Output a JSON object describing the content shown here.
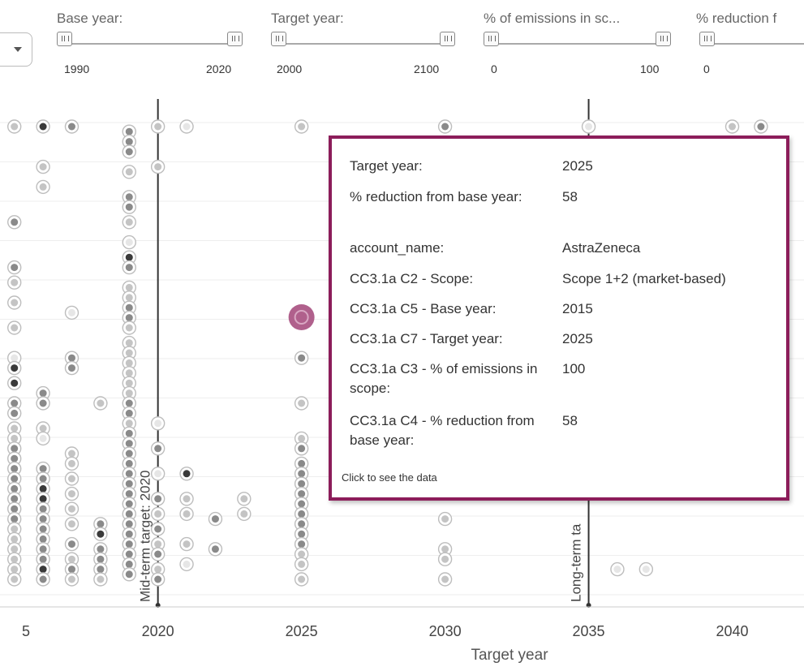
{
  "filters": [
    {
      "label": "Base year:",
      "min": "1990",
      "max": "2020"
    },
    {
      "label": "Target year:",
      "min": "2000",
      "max": "2100"
    },
    {
      "label": "% of emissions in sc...",
      "min": "0",
      "max": "100"
    },
    {
      "label": "% reduction f",
      "min": "0",
      "max": ""
    }
  ],
  "reference_lines": [
    {
      "label": "Mid-term target: 2020",
      "x": 2020
    },
    {
      "label": "Long-term ta",
      "x": 2035
    }
  ],
  "tooltip": {
    "rows": [
      {
        "key": "Target year:",
        "value": "2025"
      },
      {
        "key": "% reduction from base year:",
        "value": "58"
      },
      {
        "key": "account_name:",
        "value": "AstraZeneca"
      },
      {
        "key": "CC3.1a C2 - Scope:",
        "value": "Scope 1+2 (market-based)"
      },
      {
        "key": "CC3.1a C5 - Base year:",
        "value": "2015"
      },
      {
        "key": "CC3.1a C7 - Target year:",
        "value": "2025"
      },
      {
        "key": "CC3.1a C3 - % of emissions in scope:",
        "value": "100"
      },
      {
        "key": "CC3.1a C4 - % reduction from base year:",
        "value": "58"
      }
    ],
    "link": "Click to see the data"
  },
  "colors": {
    "accent": "#8c1d5a",
    "highlight": "#b0608c",
    "point_dark": "#333333",
    "point_light": "#cccccc"
  },
  "chart_data": {
    "type": "scatter",
    "xlabel": "Target year",
    "ylabel": "",
    "xticks": [
      "5",
      "2020",
      "2025",
      "2030",
      "2035",
      "2040"
    ],
    "xlim": [
      2014.5,
      2042.5
    ],
    "ylim": [
      0,
      100
    ],
    "highlighted_point": {
      "x": 2025,
      "y": 58,
      "label": "AstraZeneca"
    },
    "points": [
      {
        "x": 2015,
        "y": 95,
        "s": 1
      },
      {
        "x": 2015,
        "y": 76,
        "s": 2
      },
      {
        "x": 2015,
        "y": 67,
        "s": 2
      },
      {
        "x": 2015,
        "y": 64,
        "s": 1
      },
      {
        "x": 2015,
        "y": 60,
        "s": 1
      },
      {
        "x": 2015,
        "y": 55,
        "s": 1
      },
      {
        "x": 2015,
        "y": 49,
        "s": 0
      },
      {
        "x": 2015,
        "y": 47,
        "s": 3
      },
      {
        "x": 2015,
        "y": 44,
        "s": 3
      },
      {
        "x": 2015,
        "y": 40,
        "s": 2
      },
      {
        "x": 2015,
        "y": 38,
        "s": 2
      },
      {
        "x": 2015,
        "y": 35,
        "s": 1
      },
      {
        "x": 2015,
        "y": 33,
        "s": 1
      },
      {
        "x": 2015,
        "y": 31,
        "s": 2
      },
      {
        "x": 2015,
        "y": 29,
        "s": 2
      },
      {
        "x": 2015,
        "y": 27,
        "s": 2
      },
      {
        "x": 2015,
        "y": 25,
        "s": 2
      },
      {
        "x": 2015,
        "y": 23,
        "s": 2
      },
      {
        "x": 2015,
        "y": 21,
        "s": 2
      },
      {
        "x": 2015,
        "y": 19,
        "s": 2
      },
      {
        "x": 2015,
        "y": 17,
        "s": 2
      },
      {
        "x": 2015,
        "y": 15,
        "s": 1
      },
      {
        "x": 2015,
        "y": 13,
        "s": 1
      },
      {
        "x": 2015,
        "y": 11,
        "s": 1
      },
      {
        "x": 2015,
        "y": 9,
        "s": 1
      },
      {
        "x": 2015,
        "y": 7,
        "s": 1
      },
      {
        "x": 2015,
        "y": 5,
        "s": 1
      },
      {
        "x": 2016,
        "y": 95,
        "s": 3
      },
      {
        "x": 2016,
        "y": 87,
        "s": 1
      },
      {
        "x": 2016,
        "y": 83,
        "s": 1
      },
      {
        "x": 2016,
        "y": 42,
        "s": 2
      },
      {
        "x": 2016,
        "y": 40,
        "s": 2
      },
      {
        "x": 2016,
        "y": 35,
        "s": 1
      },
      {
        "x": 2016,
        "y": 33,
        "s": 0
      },
      {
        "x": 2016,
        "y": 27,
        "s": 2
      },
      {
        "x": 2016,
        "y": 25,
        "s": 2
      },
      {
        "x": 2016,
        "y": 23,
        "s": 3
      },
      {
        "x": 2016,
        "y": 21,
        "s": 3
      },
      {
        "x": 2016,
        "y": 19,
        "s": 2
      },
      {
        "x": 2016,
        "y": 17,
        "s": 2
      },
      {
        "x": 2016,
        "y": 15,
        "s": 2
      },
      {
        "x": 2016,
        "y": 13,
        "s": 2
      },
      {
        "x": 2016,
        "y": 11,
        "s": 2
      },
      {
        "x": 2016,
        "y": 9,
        "s": 2
      },
      {
        "x": 2016,
        "y": 7,
        "s": 3
      },
      {
        "x": 2016,
        "y": 5,
        "s": 2
      },
      {
        "x": 2017,
        "y": 95,
        "s": 2
      },
      {
        "x": 2017,
        "y": 58,
        "s": 0
      },
      {
        "x": 2017,
        "y": 49,
        "s": 2
      },
      {
        "x": 2017,
        "y": 47,
        "s": 2
      },
      {
        "x": 2017,
        "y": 30,
        "s": 1
      },
      {
        "x": 2017,
        "y": 28,
        "s": 1
      },
      {
        "x": 2017,
        "y": 25,
        "s": 1
      },
      {
        "x": 2017,
        "y": 22,
        "s": 1
      },
      {
        "x": 2017,
        "y": 19,
        "s": 1
      },
      {
        "x": 2017,
        "y": 16,
        "s": 1
      },
      {
        "x": 2017,
        "y": 12,
        "s": 2
      },
      {
        "x": 2017,
        "y": 9,
        "s": 1
      },
      {
        "x": 2017,
        "y": 7,
        "s": 2
      },
      {
        "x": 2017,
        "y": 5,
        "s": 1
      },
      {
        "x": 2018,
        "y": 40,
        "s": 1
      },
      {
        "x": 2018,
        "y": 16,
        "s": 2
      },
      {
        "x": 2018,
        "y": 14,
        "s": 3
      },
      {
        "x": 2018,
        "y": 11,
        "s": 2
      },
      {
        "x": 2018,
        "y": 9,
        "s": 2
      },
      {
        "x": 2018,
        "y": 7,
        "s": 2
      },
      {
        "x": 2018,
        "y": 5,
        "s": 1
      },
      {
        "x": 2019,
        "y": 94,
        "s": 2
      },
      {
        "x": 2019,
        "y": 92,
        "s": 2
      },
      {
        "x": 2019,
        "y": 90,
        "s": 2
      },
      {
        "x": 2019,
        "y": 86,
        "s": 1
      },
      {
        "x": 2019,
        "y": 81,
        "s": 2
      },
      {
        "x": 2019,
        "y": 79,
        "s": 2
      },
      {
        "x": 2019,
        "y": 76,
        "s": 1
      },
      {
        "x": 2019,
        "y": 72,
        "s": 0
      },
      {
        "x": 2019,
        "y": 69,
        "s": 3
      },
      {
        "x": 2019,
        "y": 67,
        "s": 2
      },
      {
        "x": 2019,
        "y": 63,
        "s": 1
      },
      {
        "x": 2019,
        "y": 61,
        "s": 1
      },
      {
        "x": 2019,
        "y": 59,
        "s": 2
      },
      {
        "x": 2019,
        "y": 57,
        "s": 2
      },
      {
        "x": 2019,
        "y": 55,
        "s": 1
      },
      {
        "x": 2019,
        "y": 52,
        "s": 1
      },
      {
        "x": 2019,
        "y": 50,
        "s": 1
      },
      {
        "x": 2019,
        "y": 48,
        "s": 1
      },
      {
        "x": 2019,
        "y": 46,
        "s": 1
      },
      {
        "x": 2019,
        "y": 44,
        "s": 1
      },
      {
        "x": 2019,
        "y": 42,
        "s": 1
      },
      {
        "x": 2019,
        "y": 40,
        "s": 2
      },
      {
        "x": 2019,
        "y": 38,
        "s": 2
      },
      {
        "x": 2019,
        "y": 36,
        "s": 1
      },
      {
        "x": 2019,
        "y": 34,
        "s": 2
      },
      {
        "x": 2019,
        "y": 32,
        "s": 2
      },
      {
        "x": 2019,
        "y": 30,
        "s": 2
      },
      {
        "x": 2019,
        "y": 28,
        "s": 2
      },
      {
        "x": 2019,
        "y": 26,
        "s": 2
      },
      {
        "x": 2019,
        "y": 24,
        "s": 2
      },
      {
        "x": 2019,
        "y": 22,
        "s": 2
      },
      {
        "x": 2019,
        "y": 20,
        "s": 2
      },
      {
        "x": 2019,
        "y": 18,
        "s": 2
      },
      {
        "x": 2019,
        "y": 16,
        "s": 2
      },
      {
        "x": 2019,
        "y": 14,
        "s": 2
      },
      {
        "x": 2019,
        "y": 12,
        "s": 2
      },
      {
        "x": 2019,
        "y": 10,
        "s": 2
      },
      {
        "x": 2019,
        "y": 8,
        "s": 2
      },
      {
        "x": 2019,
        "y": 6,
        "s": 2
      },
      {
        "x": 2020,
        "y": 95,
        "s": 1
      },
      {
        "x": 2020,
        "y": 87,
        "s": 1
      },
      {
        "x": 2020,
        "y": 36,
        "s": 0
      },
      {
        "x": 2020,
        "y": 31,
        "s": 2
      },
      {
        "x": 2020,
        "y": 26,
        "s": 0
      },
      {
        "x": 2020,
        "y": 21,
        "s": 2
      },
      {
        "x": 2020,
        "y": 18,
        "s": 1
      },
      {
        "x": 2020,
        "y": 15,
        "s": 2
      },
      {
        "x": 2020,
        "y": 12,
        "s": 1
      },
      {
        "x": 2020,
        "y": 10,
        "s": 2
      },
      {
        "x": 2020,
        "y": 7,
        "s": 1
      },
      {
        "x": 2020,
        "y": 5,
        "s": 2
      },
      {
        "x": 2021,
        "y": 95,
        "s": 0
      },
      {
        "x": 2021,
        "y": 26,
        "s": 3
      },
      {
        "x": 2021,
        "y": 21,
        "s": 1
      },
      {
        "x": 2021,
        "y": 18,
        "s": 1
      },
      {
        "x": 2021,
        "y": 12,
        "s": 1
      },
      {
        "x": 2021,
        "y": 8,
        "s": 0
      },
      {
        "x": 2022,
        "y": 17,
        "s": 2
      },
      {
        "x": 2022,
        "y": 11,
        "s": 2
      },
      {
        "x": 2023,
        "y": 21,
        "s": 1
      },
      {
        "x": 2023,
        "y": 18,
        "s": 1
      },
      {
        "x": 2025,
        "y": 95,
        "s": 1
      },
      {
        "x": 2025,
        "y": 49,
        "s": 2
      },
      {
        "x": 2025,
        "y": 40,
        "s": 1
      },
      {
        "x": 2025,
        "y": 33,
        "s": 1
      },
      {
        "x": 2025,
        "y": 31,
        "s": 2
      },
      {
        "x": 2025,
        "y": 28,
        "s": 2
      },
      {
        "x": 2025,
        "y": 26,
        "s": 2
      },
      {
        "x": 2025,
        "y": 24,
        "s": 2
      },
      {
        "x": 2025,
        "y": 22,
        "s": 2
      },
      {
        "x": 2025,
        "y": 20,
        "s": 2
      },
      {
        "x": 2025,
        "y": 18,
        "s": 2
      },
      {
        "x": 2025,
        "y": 16,
        "s": 2
      },
      {
        "x": 2025,
        "y": 14,
        "s": 2
      },
      {
        "x": 2025,
        "y": 12,
        "s": 2
      },
      {
        "x": 2025,
        "y": 10,
        "s": 1
      },
      {
        "x": 2025,
        "y": 8,
        "s": 1
      },
      {
        "x": 2025,
        "y": 5,
        "s": 1
      },
      {
        "x": 2030,
        "y": 95,
        "s": 2
      },
      {
        "x": 2030,
        "y": 17,
        "s": 1
      },
      {
        "x": 2030,
        "y": 11,
        "s": 1
      },
      {
        "x": 2030,
        "y": 9,
        "s": 1
      },
      {
        "x": 2030,
        "y": 5,
        "s": 1
      },
      {
        "x": 2035,
        "y": 95,
        "s": 0
      },
      {
        "x": 2036,
        "y": 7,
        "s": 0
      },
      {
        "x": 2037,
        "y": 7,
        "s": 0
      },
      {
        "x": 2040,
        "y": 95,
        "s": 1
      },
      {
        "x": 2041,
        "y": 95,
        "s": 2
      }
    ]
  }
}
